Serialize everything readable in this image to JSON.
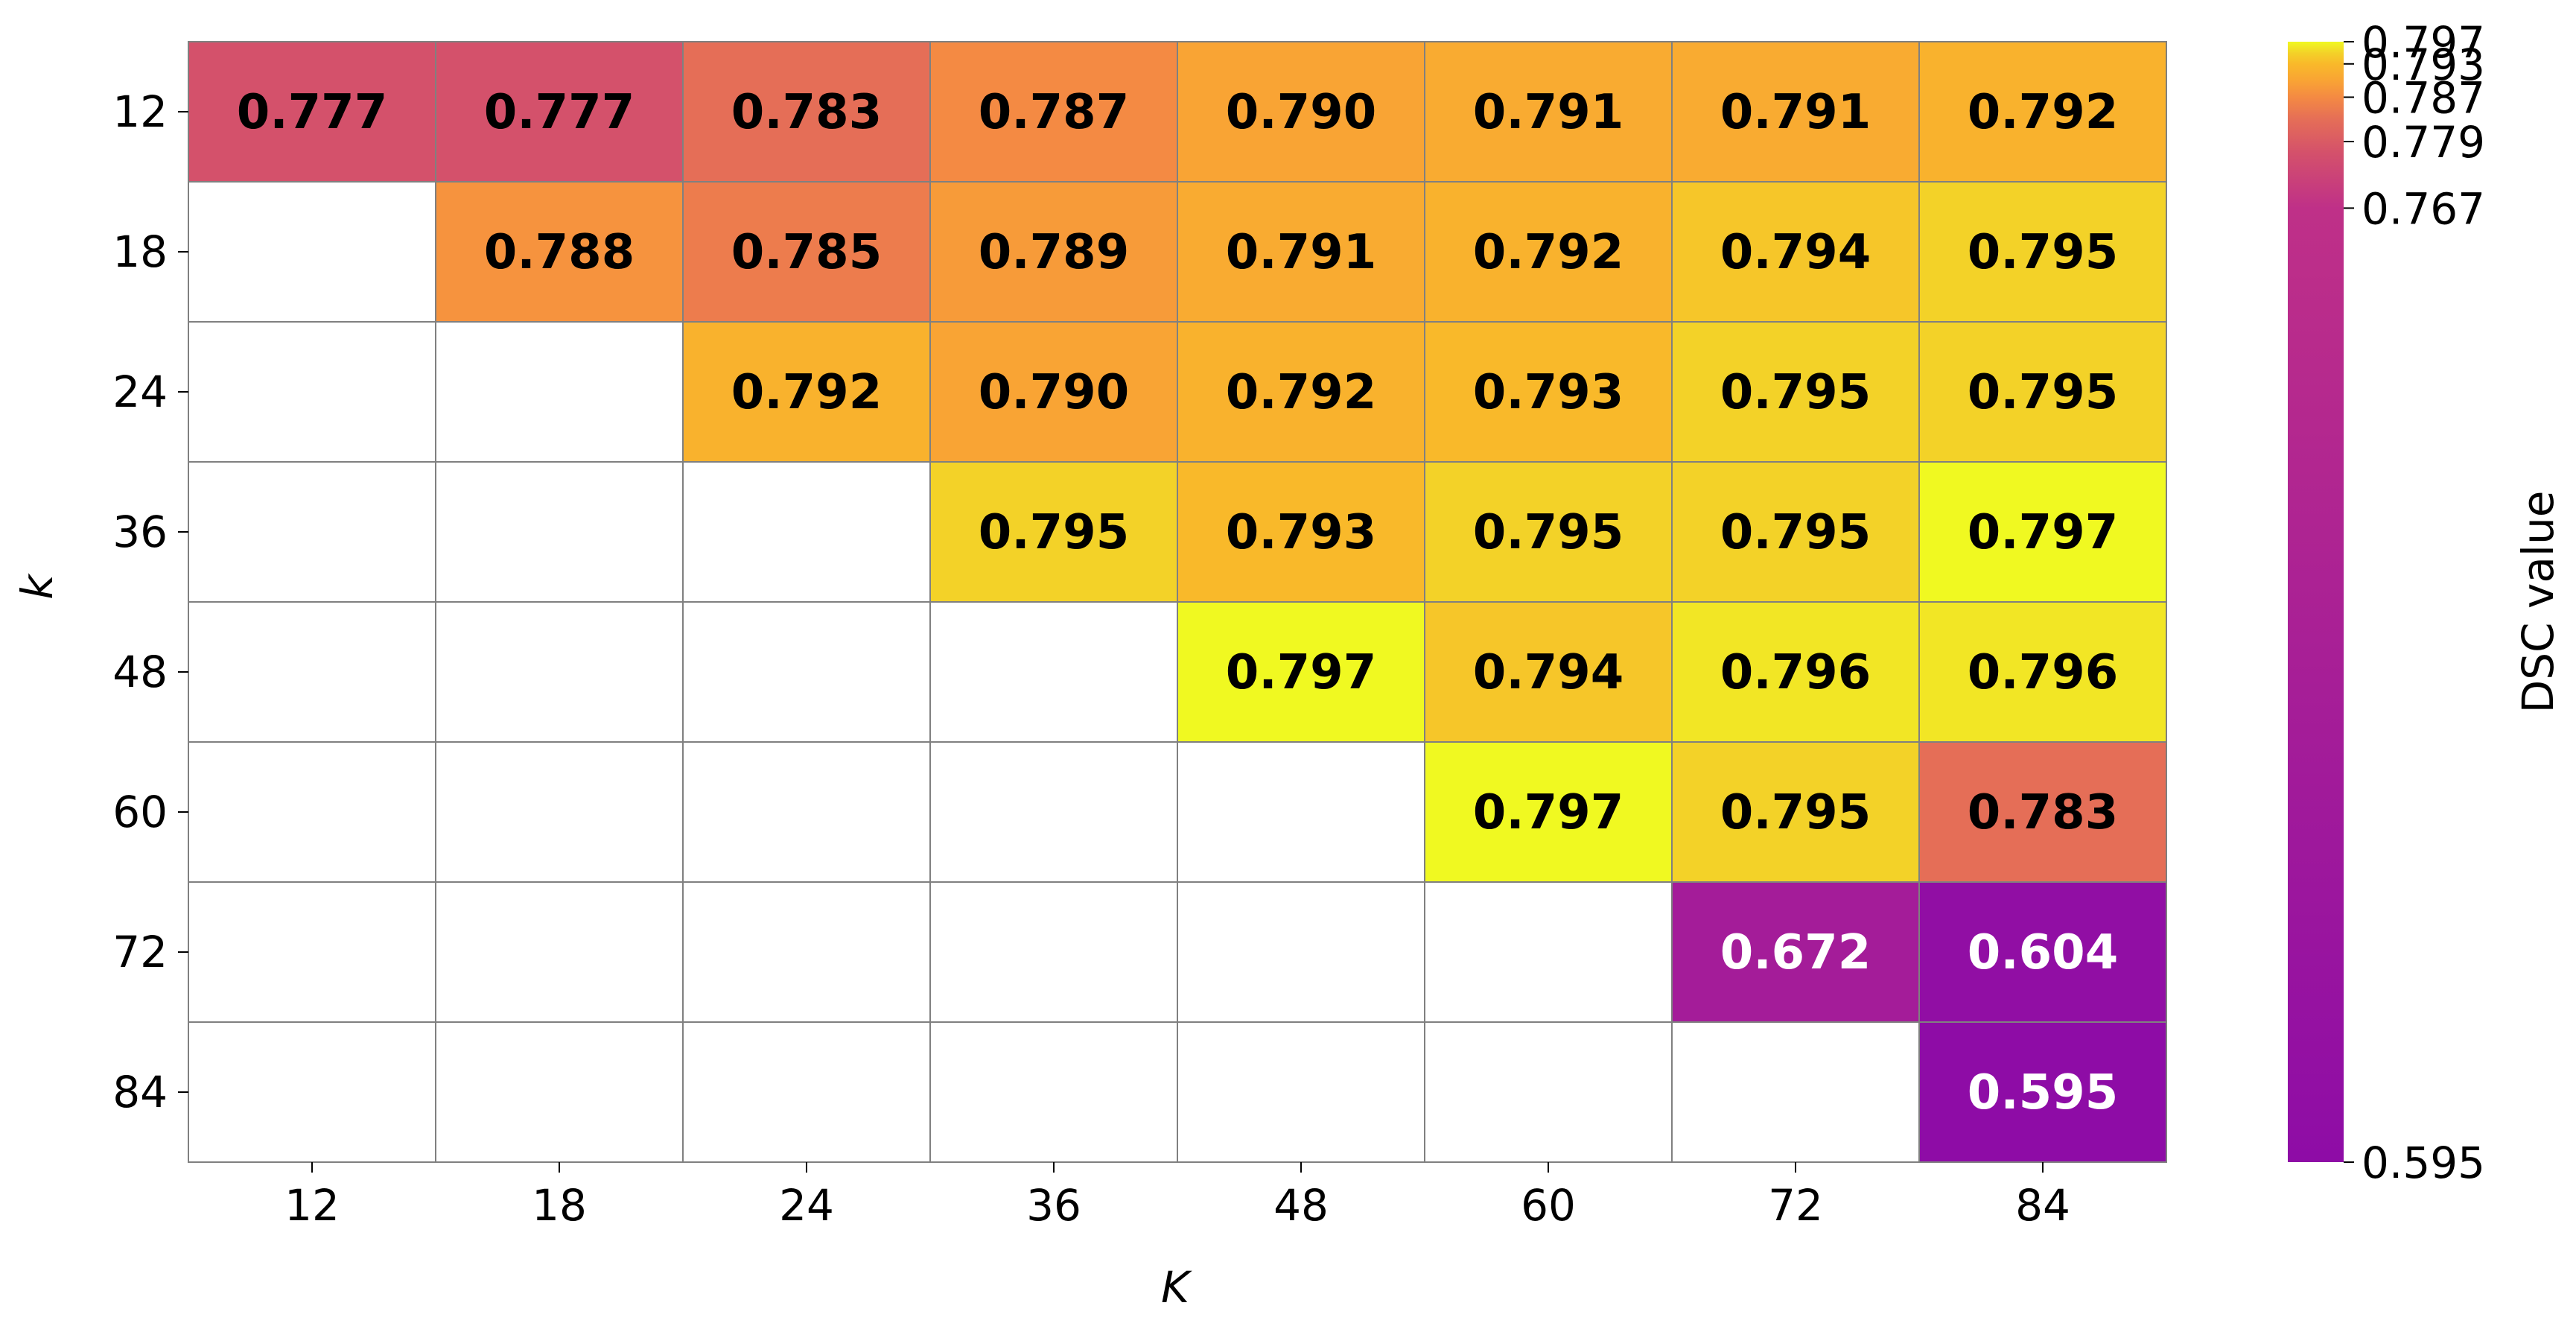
{
  "chart_data": {
    "type": "heatmap",
    "title": "",
    "xlabel": "K",
    "ylabel": "k",
    "x_categories": [
      "12",
      "18",
      "24",
      "36",
      "48",
      "60",
      "72",
      "84"
    ],
    "y_categories": [
      "12",
      "18",
      "24",
      "36",
      "48",
      "60",
      "72",
      "84"
    ],
    "values": [
      [
        0.777,
        0.777,
        0.783,
        0.787,
        0.79,
        0.791,
        0.791,
        0.792
      ],
      [
        null,
        0.788,
        0.785,
        0.789,
        0.791,
        0.792,
        0.794,
        0.795
      ],
      [
        null,
        null,
        0.792,
        0.79,
        0.792,
        0.793,
        0.795,
        0.795
      ],
      [
        null,
        null,
        null,
        0.795,
        0.793,
        0.795,
        0.795,
        0.797
      ],
      [
        null,
        null,
        null,
        null,
        0.797,
        0.794,
        0.796,
        0.796
      ],
      [
        null,
        null,
        null,
        null,
        null,
        0.797,
        0.795,
        0.783
      ],
      [
        null,
        null,
        null,
        null,
        null,
        null,
        0.672,
        0.604
      ],
      [
        null,
        null,
        null,
        null,
        null,
        null,
        null,
        0.595
      ]
    ],
    "cell_labels": [
      [
        "0.777",
        "0.777",
        "0.783",
        "0.787",
        "0.790",
        "0.791",
        "0.791",
        "0.792"
      ],
      [
        "",
        "0.788",
        "0.785",
        "0.789",
        "0.791",
        "0.792",
        "0.794",
        "0.795"
      ],
      [
        "",
        "",
        "0.792",
        "0.790",
        "0.792",
        "0.793",
        "0.795",
        "0.795"
      ],
      [
        "",
        "",
        "",
        "0.795",
        "0.793",
        "0.795",
        "0.795",
        "0.797"
      ],
      [
        "",
        "",
        "",
        "",
        "0.797",
        "0.794",
        "0.796",
        "0.796"
      ],
      [
        "",
        "",
        "",
        "",
        "",
        "0.797",
        "0.795",
        "0.783"
      ],
      [
        "",
        "",
        "",
        "",
        "",
        "",
        "0.672",
        "0.604"
      ],
      [
        "",
        "",
        "",
        "",
        "",
        "",
        "",
        "0.595"
      ]
    ],
    "colorbar": {
      "label": "DSC value",
      "ticks": [
        0.595,
        0.767,
        0.779,
        0.787,
        0.793,
        0.797
      ],
      "tick_labels": [
        "0.595",
        "0.767",
        "0.779",
        "0.787",
        "0.793",
        "0.797"
      ],
      "colormap": "plasma-like",
      "stops": [
        {
          "value": 0.595,
          "color": "#8e0ca6"
        },
        {
          "value": 0.767,
          "color": "#bf3088"
        },
        {
          "value": 0.777,
          "color": "#d4516b"
        },
        {
          "value": 0.783,
          "color": "#e56e57"
        },
        {
          "value": 0.787,
          "color": "#f48a43"
        },
        {
          "value": 0.79,
          "color": "#f9a434"
        },
        {
          "value": 0.793,
          "color": "#f9b92a"
        },
        {
          "value": 0.795,
          "color": "#f3d228"
        },
        {
          "value": 0.797,
          "color": "#f0f921"
        }
      ]
    },
    "missing_color": "#ffffff",
    "grid_color": "#808080",
    "label_dark_color": "#000000",
    "label_light_color": "#ffffff",
    "light_label_threshold": 0.72
  }
}
